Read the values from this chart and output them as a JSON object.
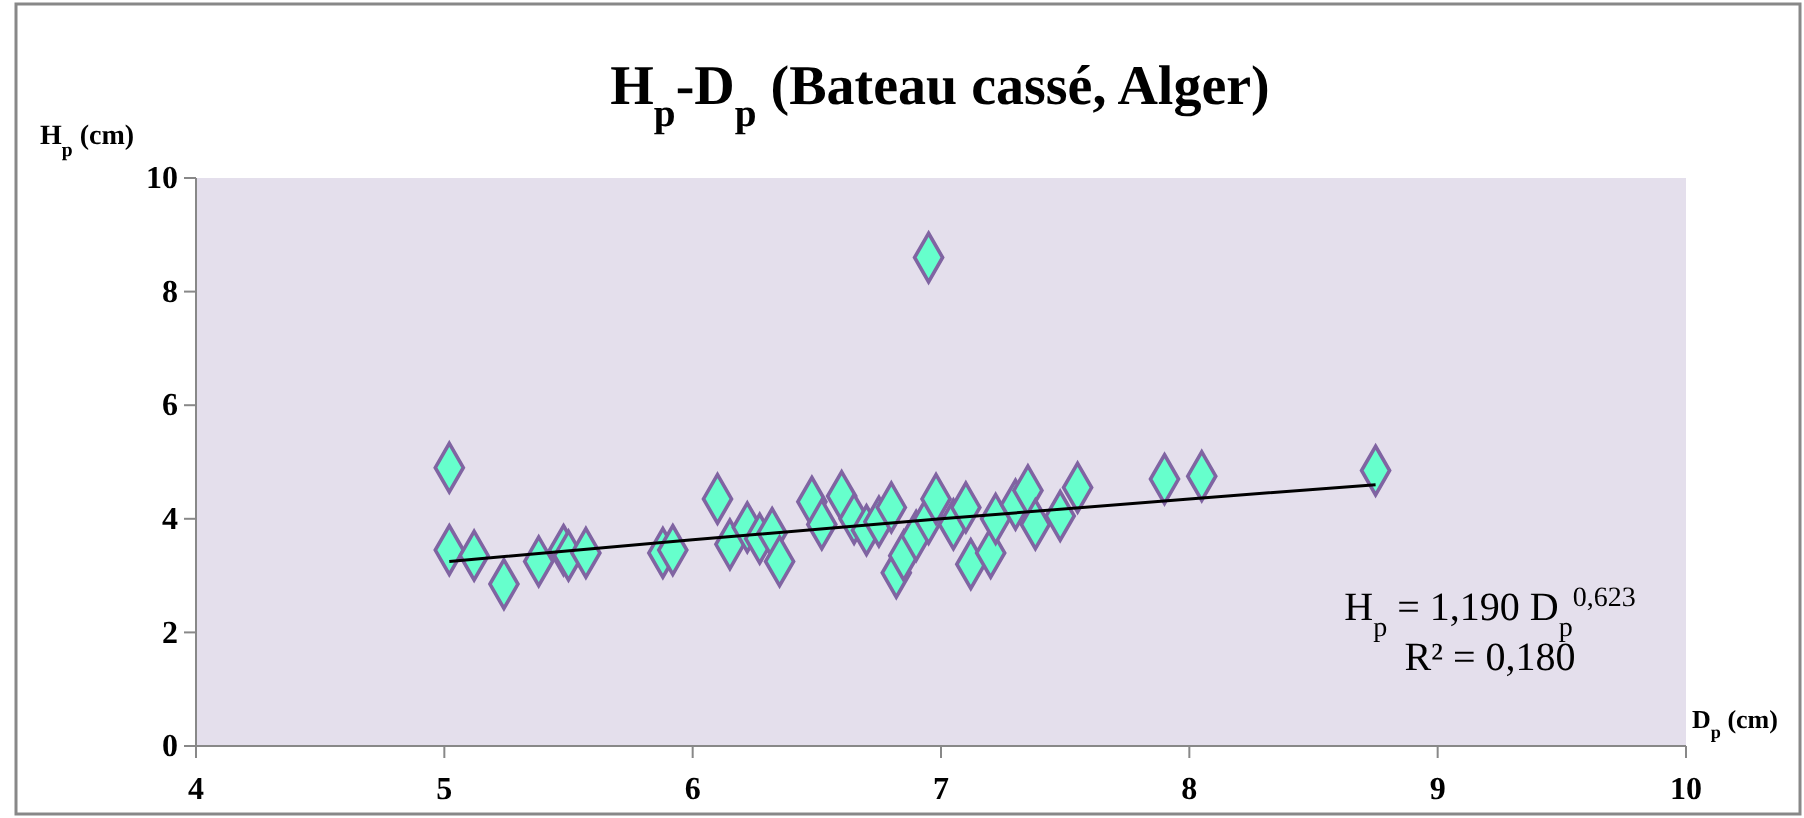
{
  "chart_data": {
    "type": "scatter",
    "title": "H$_{p}$-D$_{p}$ (Bateau cassé, Alger)",
    "xlabel": "D$_{p}$ (cm)",
    "ylabel": "H$_{p}$ (cm)",
    "xlim": [
      4,
      10
    ],
    "xticks": [
      4,
      5,
      6,
      7,
      8,
      9,
      10
    ],
    "ylim": [
      0,
      10
    ],
    "yticks": [
      0,
      2,
      4,
      6,
      8,
      10
    ],
    "grid": false,
    "marker": "diamond",
    "series": [
      {
        "color": "#66ffcc",
        "x": [
          5.02,
          5.02,
          5.12,
          5.24,
          5.38,
          5.48,
          5.5,
          5.57,
          5.88,
          5.92,
          6.1,
          6.15,
          6.22,
          6.27,
          6.32,
          6.35,
          6.48,
          6.52,
          6.6,
          6.65,
          6.7,
          6.75,
          6.8,
          6.82,
          6.85,
          6.9,
          6.95,
          6.95,
          6.98,
          7.05,
          7.1,
          7.12,
          7.2,
          7.22,
          7.3,
          7.35,
          7.38,
          7.48,
          7.55,
          7.9,
          8.05,
          8.75
        ],
        "values": [
          4.9,
          3.45,
          3.35,
          2.85,
          3.25,
          3.45,
          3.35,
          3.4,
          3.4,
          3.45,
          4.35,
          3.55,
          3.85,
          3.65,
          3.75,
          3.25,
          4.3,
          3.9,
          4.4,
          4.0,
          3.8,
          3.95,
          4.2,
          3.05,
          3.35,
          3.7,
          4.0,
          8.6,
          4.35,
          3.9,
          4.2,
          3.2,
          3.4,
          4.0,
          4.25,
          4.5,
          3.9,
          4.05,
          4.55,
          4.7,
          4.75,
          4.85
        ]
      },
      {
        "type": "line",
        "color": "#000000",
        "marker": "none",
        "x": [
          5.02,
          6,
          7,
          8,
          8.75
        ],
        "values": [
          3.25,
          3.63,
          4.0,
          4.35,
          4.6
        ]
      }
    ],
    "annotations": [
      "H$_{p}$ = 1,190 D$_{p}$$^{0,623}$",
      "R² = 0,180"
    ]
  }
}
